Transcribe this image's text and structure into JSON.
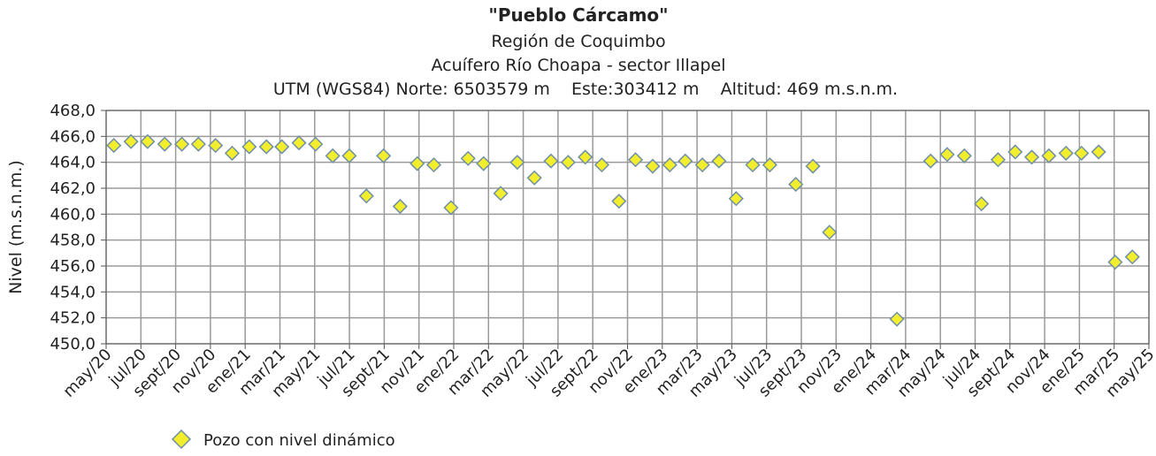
{
  "chart_data": {
    "type": "scatter",
    "title": "\"Pueblo Cárcamo\"",
    "subtitles": [
      "Región de Coquimbo",
      "Acuífero Río Choapa - sector Illapel",
      "UTM (WGS84) Norte: 6503579 m    Este:303412 m    Altitud: 469 m.s.n.m."
    ],
    "ylabel": "Nivel (m.s.n.m.)",
    "xlabel": "",
    "ylim": [
      450,
      468
    ],
    "yticks": [
      "450,0",
      "452,0",
      "454,0",
      "456,0",
      "458,0",
      "460,0",
      "462,0",
      "464,0",
      "466,0",
      "468,0"
    ],
    "xticks": [
      "may/20",
      "jul/20",
      "sept/20",
      "nov/20",
      "ene/21",
      "mar/21",
      "may/21",
      "jul/21",
      "sept/21",
      "nov/21",
      "ene/22",
      "mar/22",
      "may/22",
      "jul/22",
      "sept/22",
      "nov/22",
      "ene/23",
      "mar/23",
      "may/23",
      "jul/23",
      "sept/23",
      "nov/23",
      "ene/24",
      "mar/24",
      "may/24",
      "jul/24",
      "sept/24",
      "nov/24",
      "ene/25",
      "mar/25",
      "may/25"
    ],
    "grid": true,
    "legend_position": "bottom-left",
    "marker_color": "#f2ee2e",
    "marker_edge_color": "#6f8fa6",
    "series": [
      {
        "name": "Pozo con nivel dinámico",
        "points": [
          {
            "x": "2020-05-15",
            "y": 465.3
          },
          {
            "x": "2020-06-15",
            "y": 465.6
          },
          {
            "x": "2020-07-15",
            "y": 465.6
          },
          {
            "x": "2020-08-15",
            "y": 465.4
          },
          {
            "x": "2020-09-15",
            "y": 465.4
          },
          {
            "x": "2020-10-15",
            "y": 465.4
          },
          {
            "x": "2020-11-15",
            "y": 465.3
          },
          {
            "x": "2020-12-15",
            "y": 464.7
          },
          {
            "x": "2021-01-15",
            "y": 465.2
          },
          {
            "x": "2021-02-15",
            "y": 465.2
          },
          {
            "x": "2021-03-15",
            "y": 465.2
          },
          {
            "x": "2021-04-15",
            "y": 465.5
          },
          {
            "x": "2021-05-15",
            "y": 465.4
          },
          {
            "x": "2021-06-15",
            "y": 464.5
          },
          {
            "x": "2021-07-15",
            "y": 464.5
          },
          {
            "x": "2021-08-15",
            "y": 461.4
          },
          {
            "x": "2021-09-15",
            "y": 464.5
          },
          {
            "x": "2021-10-15",
            "y": 460.6
          },
          {
            "x": "2021-11-15",
            "y": 463.9
          },
          {
            "x": "2021-12-15",
            "y": 463.8
          },
          {
            "x": "2022-01-15",
            "y": 460.5
          },
          {
            "x": "2022-02-15",
            "y": 464.3
          },
          {
            "x": "2022-03-15",
            "y": 463.9
          },
          {
            "x": "2022-04-15",
            "y": 461.6
          },
          {
            "x": "2022-05-15",
            "y": 464.0
          },
          {
            "x": "2022-06-15",
            "y": 462.8
          },
          {
            "x": "2022-07-15",
            "y": 464.1
          },
          {
            "x": "2022-08-15",
            "y": 464.0
          },
          {
            "x": "2022-09-15",
            "y": 464.4
          },
          {
            "x": "2022-10-15",
            "y": 463.8
          },
          {
            "x": "2022-11-15",
            "y": 461.0
          },
          {
            "x": "2022-12-15",
            "y": 464.2
          },
          {
            "x": "2023-01-15",
            "y": 463.7
          },
          {
            "x": "2023-02-15",
            "y": 463.8
          },
          {
            "x": "2023-03-15",
            "y": 464.1
          },
          {
            "x": "2023-04-15",
            "y": 463.8
          },
          {
            "x": "2023-05-15",
            "y": 464.1
          },
          {
            "x": "2023-06-15",
            "y": 461.2
          },
          {
            "x": "2023-07-15",
            "y": 463.8
          },
          {
            "x": "2023-08-15",
            "y": 463.8
          },
          {
            "x": "2023-10-01",
            "y": 462.3
          },
          {
            "x": "2023-11-01",
            "y": 463.7
          },
          {
            "x": "2023-12-01",
            "y": 458.6
          },
          {
            "x": "2024-04-01",
            "y": 451.9
          },
          {
            "x": "2024-06-01",
            "y": 464.1
          },
          {
            "x": "2024-07-01",
            "y": 464.6
          },
          {
            "x": "2024-08-01",
            "y": 464.5
          },
          {
            "x": "2024-09-01",
            "y": 460.8
          },
          {
            "x": "2024-10-01",
            "y": 464.2
          },
          {
            "x": "2024-11-01",
            "y": 464.8
          },
          {
            "x": "2024-12-01",
            "y": 464.4
          },
          {
            "x": "2025-01-01",
            "y": 464.5
          },
          {
            "x": "2025-02-01",
            "y": 464.7
          },
          {
            "x": "2025-03-01",
            "y": 464.7
          },
          {
            "x": "2025-04-01",
            "y": 464.8
          },
          {
            "x": "2025-05-01",
            "y": 456.3
          },
          {
            "x": "2025-06-01",
            "y": 456.7
          }
        ]
      }
    ]
  }
}
